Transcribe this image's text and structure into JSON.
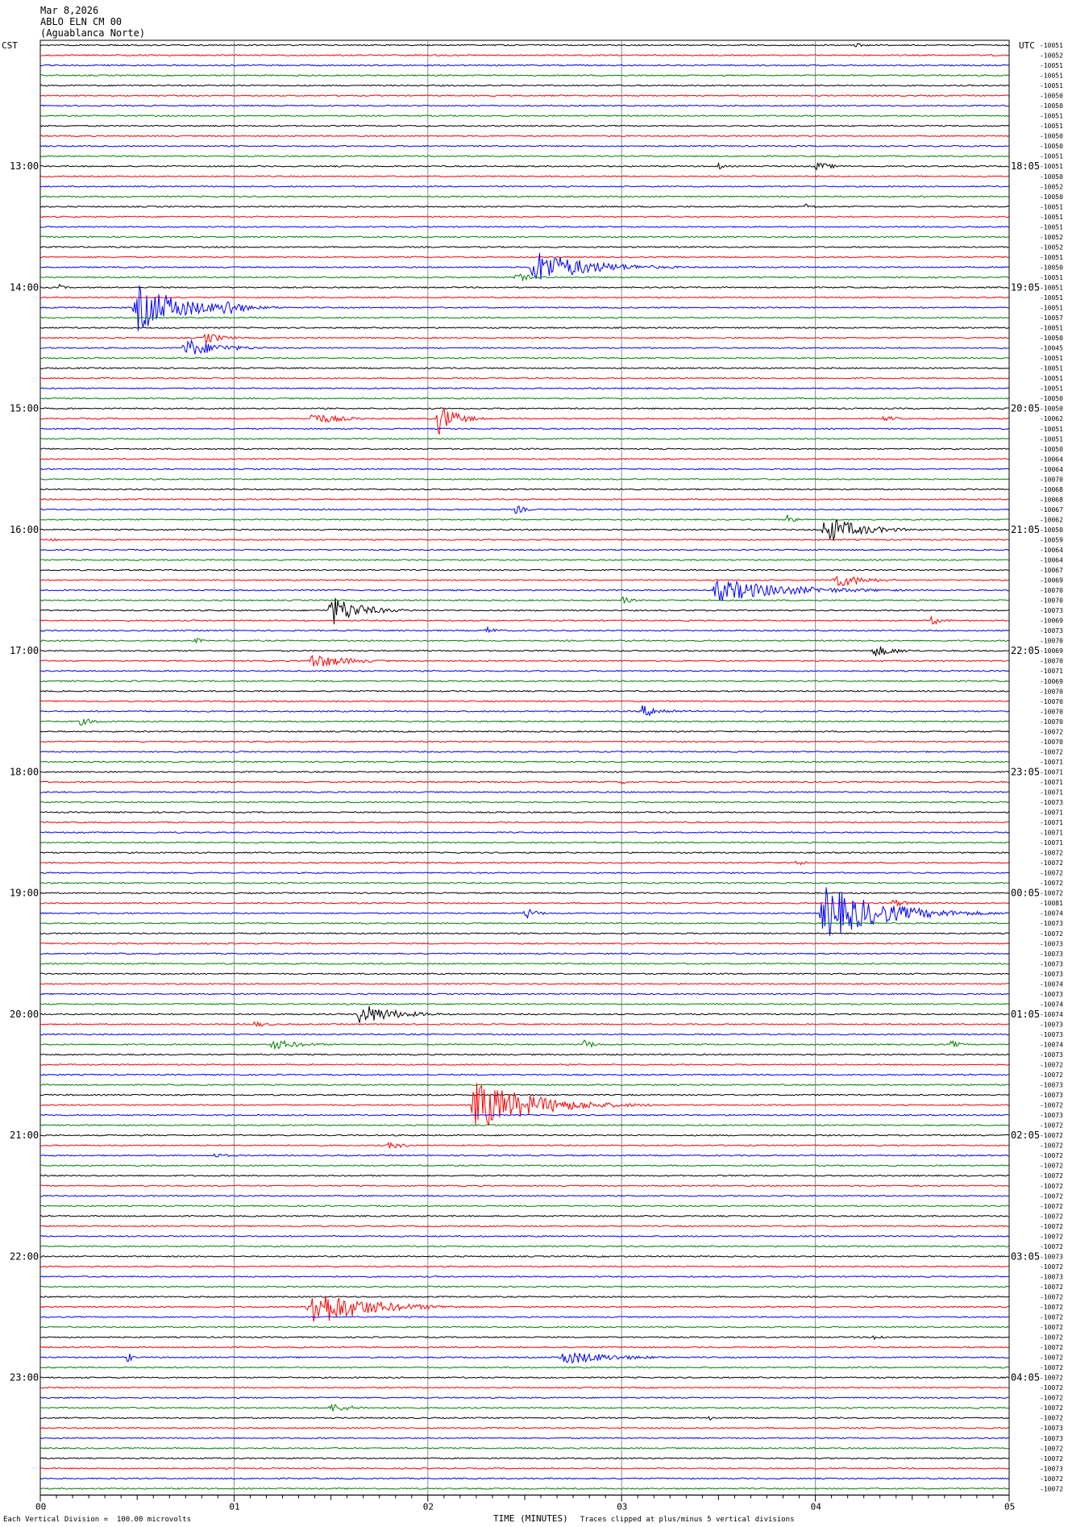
{
  "header": {
    "date": "Mar 8,2026",
    "station": "ABLO ELN CM 00",
    "location": "(Aguablanca Norte)",
    "left_label": "CST",
    "right_label": "UTC"
  },
  "footer": {
    "scale_text": "Each Vertical Division =  100.00 microvolts",
    "xlabel": "TIME (MINUTES)",
    "clip_text": "Traces clipped at plus/minus 5 vertical divisions"
  },
  "chart_data": {
    "type": "line",
    "title": "",
    "xlabel": "TIME (MINUTES)",
    "xlim": [
      0,
      5
    ],
    "x_ticks": [
      "00",
      "01",
      "02",
      "03",
      "04",
      "05"
    ],
    "trace_count": 144,
    "trace_minutes": 5,
    "colors": [
      "#000000",
      "#ff0000",
      "#0000ff",
      "#007f00"
    ],
    "left_hour_labels": [
      "13:00",
      "14:00",
      "15:00",
      "16:00",
      "17:00",
      "18:00",
      "19:00",
      "20:00",
      "21:00",
      "22:00",
      "23:00"
    ],
    "left_hour_trace_index": [
      12,
      24,
      36,
      48,
      60,
      72,
      84,
      96,
      108,
      120,
      132
    ],
    "right_hour_labels": [
      "18:05",
      "19:05",
      "20:05",
      "21:05",
      "22:05",
      "23:05",
      "00:05",
      "01:05",
      "02:05",
      "03:05",
      "04:05"
    ],
    "trace_offsets": [
      "-10051",
      "-10052",
      "-10051",
      "-10051",
      "-10051",
      "-10050",
      "-10050",
      "-10051",
      "-10051",
      "-10050",
      "-10050",
      "-10051",
      "-10051",
      "-10050",
      "-10052",
      "-10050",
      "-10051",
      "-10051",
      "-10051",
      "-10052",
      "-10052",
      "-10051",
      "-10050",
      "-10051",
      "-10051",
      "-10051",
      "-10051",
      "-10057",
      "-10051",
      "-10050",
      "-10045",
      "-10051",
      "-10051",
      "-10051",
      "-10051",
      "-10050",
      "-10050",
      "-10062",
      "-10051",
      "-10051",
      "-10050",
      "-10064",
      "-10064",
      "-10070",
      "-10068",
      "-10068",
      "-10067",
      "-10062",
      "-10050",
      "-10059",
      "-10064",
      "-10064",
      "-10067",
      "-10069",
      "-10070",
      "-10070",
      "-10073",
      "-10069",
      "-10073",
      "-10070",
      "-10069",
      "-10070",
      "-10071",
      "-10069",
      "-10070",
      "-10070",
      "-10070",
      "-10070",
      "-10072",
      "-10070",
      "-10072",
      "-10071",
      "-10071",
      "-10071",
      "-10071",
      "-10073",
      "-10071",
      "-10071",
      "-10071",
      "-10071",
      "-10072",
      "-10072",
      "-10072",
      "-10072",
      "-10072",
      "-10081",
      "-10074",
      "-10073",
      "-10072",
      "-10073",
      "-10073",
      "-10073",
      "-10073",
      "-10074",
      "-10073",
      "-10074",
      "-10074",
      "-10073",
      "-10073",
      "-10074",
      "-10073",
      "-10072",
      "-10072",
      "-10073",
      "-10073",
      "-10072",
      "-10073",
      "-10072",
      "-10072",
      "-10072",
      "-10072",
      "-10072",
      "-10072",
      "-10072",
      "-10072",
      "-10072",
      "-10072",
      "-10072",
      "-10072",
      "-10072",
      "-10073",
      "-10072",
      "-10073",
      "-10072",
      "-10072",
      "-10072",
      "-10072",
      "-10072",
      "-10072",
      "-10072",
      "-10072",
      "-10072",
      "-10072",
      "-10072",
      "-10072",
      "-10072",
      "-10072",
      "-10073",
      "-10073",
      "-10072",
      "-10072",
      "-10073",
      "-10072",
      "-10072"
    ],
    "events": [
      {
        "trace": 0,
        "t": 4.2,
        "amp": 3,
        "dur": 0.2
      },
      {
        "trace": 1,
        "t": 4.9,
        "amp": 3,
        "dur": 0.15
      },
      {
        "trace": 12,
        "t": 3.5,
        "amp": 5,
        "dur": 0.1
      },
      {
        "trace": 12,
        "t": 4.0,
        "amp": 6,
        "dur": 0.3
      },
      {
        "trace": 16,
        "t": 3.95,
        "amp": 4,
        "dur": 0.2
      },
      {
        "trace": 22,
        "t": 2.55,
        "amp": 22,
        "dur": 0.9
      },
      {
        "trace": 23,
        "t": 2.45,
        "amp": 6,
        "dur": 0.3
      },
      {
        "trace": 24,
        "t": 0.1,
        "amp": 4,
        "dur": 0.1
      },
      {
        "trace": 26,
        "t": 0.5,
        "amp": 30,
        "dur": 0.8
      },
      {
        "trace": 26,
        "t": 0.95,
        "amp": 14,
        "dur": 0.3
      },
      {
        "trace": 29,
        "t": 0.85,
        "amp": 8,
        "dur": 0.3
      },
      {
        "trace": 30,
        "t": 0.75,
        "amp": 12,
        "dur": 0.6
      },
      {
        "trace": 37,
        "t": 1.4,
        "amp": 8,
        "dur": 0.5
      },
      {
        "trace": 37,
        "t": 2.05,
        "amp": 22,
        "dur": 0.3
      },
      {
        "trace": 37,
        "t": 4.35,
        "amp": 5,
        "dur": 0.2
      },
      {
        "trace": 46,
        "t": 2.45,
        "amp": 6,
        "dur": 0.2
      },
      {
        "trace": 47,
        "t": 3.85,
        "amp": 16,
        "dur": 0.1
      },
      {
        "trace": 48,
        "t": 4.05,
        "amp": 18,
        "dur": 0.6
      },
      {
        "trace": 49,
        "t": 0.05,
        "amp": 5,
        "dur": 0.1
      },
      {
        "trace": 53,
        "t": 4.1,
        "amp": 10,
        "dur": 0.5
      },
      {
        "trace": 54,
        "t": 3.5,
        "amp": 14,
        "dur": 1.3
      },
      {
        "trace": 55,
        "t": 3.0,
        "amp": 5,
        "dur": 0.2
      },
      {
        "trace": 56,
        "t": 1.5,
        "amp": 20,
        "dur": 0.5
      },
      {
        "trace": 57,
        "t": 4.6,
        "amp": 6,
        "dur": 0.2
      },
      {
        "trace": 58,
        "t": 2.3,
        "amp": 5,
        "dur": 0.2
      },
      {
        "trace": 59,
        "t": 0.8,
        "amp": 5,
        "dur": 0.1
      },
      {
        "trace": 60,
        "t": 4.3,
        "amp": 8,
        "dur": 0.4
      },
      {
        "trace": 61,
        "t": 1.4,
        "amp": 10,
        "dur": 0.6
      },
      {
        "trace": 66,
        "t": 3.1,
        "amp": 8,
        "dur": 0.4
      },
      {
        "trace": 67,
        "t": 0.2,
        "amp": 5,
        "dur": 0.3
      },
      {
        "trace": 73,
        "t": 3.0,
        "amp": 4,
        "dur": 0.1
      },
      {
        "trace": 81,
        "t": 3.9,
        "amp": 4,
        "dur": 0.2
      },
      {
        "trace": 86,
        "t": 4.05,
        "amp": 34,
        "dur": 1.0
      },
      {
        "trace": 86,
        "t": 2.5,
        "amp": 8,
        "dur": 0.2
      },
      {
        "trace": 85,
        "t": 4.4,
        "amp": 5,
        "dur": 0.3
      },
      {
        "trace": 96,
        "t": 1.65,
        "amp": 14,
        "dur": 0.6
      },
      {
        "trace": 97,
        "t": 1.1,
        "amp": 4,
        "dur": 0.3
      },
      {
        "trace": 99,
        "t": 1.2,
        "amp": 7,
        "dur": 0.5
      },
      {
        "trace": 99,
        "t": 2.8,
        "amp": 7,
        "dur": 0.2
      },
      {
        "trace": 99,
        "t": 4.7,
        "amp": 5,
        "dur": 0.2
      },
      {
        "trace": 105,
        "t": 2.25,
        "amp": 32,
        "dur": 1.0
      },
      {
        "trace": 109,
        "t": 1.8,
        "amp": 5,
        "dur": 0.3
      },
      {
        "trace": 110,
        "t": 0.9,
        "amp": 3,
        "dur": 0.3
      },
      {
        "trace": 125,
        "t": 1.4,
        "amp": 26,
        "dur": 0.9
      },
      {
        "trace": 128,
        "t": 4.3,
        "amp": 4,
        "dur": 0.2
      },
      {
        "trace": 130,
        "t": 0.45,
        "amp": 7,
        "dur": 0.1
      },
      {
        "trace": 130,
        "t": 2.7,
        "amp": 9,
        "dur": 0.9
      },
      {
        "trace": 135,
        "t": 1.5,
        "amp": 6,
        "dur": 0.4
      },
      {
        "trace": 136,
        "t": 3.45,
        "amp": 4,
        "dur": 0.1
      }
    ]
  }
}
